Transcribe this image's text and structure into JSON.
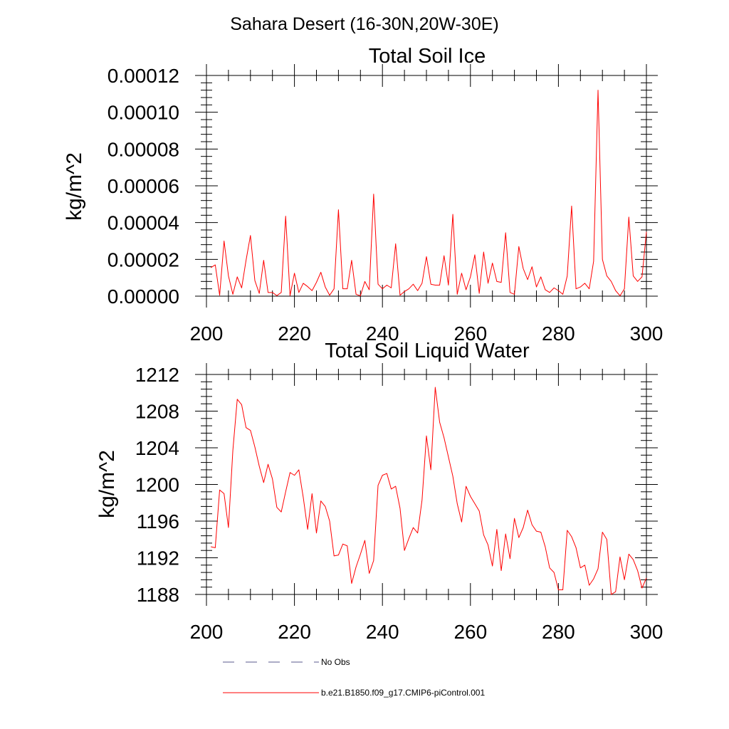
{
  "chart_data": [
    {
      "type": "line",
      "suptitle": "Sahara Desert (16-30N,20W-30E)",
      "title": "Total Soil Ice",
      "ylabel": "kg/m^2",
      "xlabel": "",
      "xlim": [
        200,
        300
      ],
      "ylim": [
        0,
        0.00012
      ],
      "xticks": [
        200,
        220,
        240,
        260,
        280,
        300
      ],
      "xtick_labels": [
        "200",
        "220",
        "240",
        "260",
        "280",
        "300"
      ],
      "yticks": [
        0,
        2e-05,
        4e-05,
        6e-05,
        8e-05,
        0.0001,
        0.00012
      ],
      "ytick_labels": [
        "0.00000",
        "0.00002",
        "0.00004",
        "0.00006",
        "0.00008",
        "0.00010",
        "0.00012"
      ],
      "series": [
        {
          "name": "b.e21.B1850.f09_g17.CMIP6-piControl.001",
          "color": "#ff0000",
          "x": [
            201,
            202,
            203,
            204,
            205,
            206,
            207,
            208,
            209,
            210,
            211,
            212,
            213,
            214,
            215,
            216,
            217,
            218,
            219,
            220,
            221,
            222,
            223,
            224,
            225,
            226,
            227,
            228,
            229,
            230,
            231,
            232,
            233,
            234,
            235,
            236,
            237,
            238,
            239,
            240,
            241,
            242,
            243,
            244,
            245,
            246,
            247,
            248,
            249,
            250,
            251,
            252,
            253,
            254,
            255,
            256,
            257,
            258,
            259,
            260,
            261,
            262,
            263,
            264,
            265,
            266,
            267,
            268,
            269,
            270,
            271,
            272,
            273,
            274,
            275,
            276,
            277,
            278,
            279,
            280,
            281,
            282,
            283,
            284,
            285,
            286,
            287,
            288,
            289,
            290,
            291,
            292,
            293,
            294,
            295,
            296,
            297,
            298,
            299,
            300
          ],
          "values": [
            1.55e-05,
            1.7e-05,
            5e-07,
            3e-05,
            1.1e-05,
            1e-06,
            1.05e-05,
            4.5e-06,
            1.95e-05,
            3.3e-05,
            8.5e-06,
            1.5e-06,
            1.95e-05,
            2e-06,
            2e-06,
            3e-07,
            2e-06,
            4.35e-05,
            3e-07,
            1.25e-05,
            2e-06,
            7e-06,
            5.2e-06,
            3e-06,
            7.5e-06,
            1.3e-05,
            5e-06,
            5e-07,
            4e-06,
            4.7e-05,
            4e-06,
            4e-06,
            1.95e-05,
            1e-06,
            2e-07,
            8e-06,
            3.5e-06,
            5.55e-05,
            6.5e-06,
            4e-06,
            6e-06,
            4.5e-06,
            2.85e-05,
            5e-07,
            2.5e-06,
            4e-06,
            6.5e-06,
            3e-06,
            7e-06,
            2.15e-05,
            6.5e-06,
            6e-06,
            6e-06,
            2.2e-05,
            6e-06,
            4.45e-05,
            1e-06,
            1.25e-05,
            3.5e-06,
            1.05e-05,
            2.25e-05,
            1.5e-06,
            2.4e-05,
            7e-06,
            1.8e-05,
            8e-06,
            7.5e-06,
            3.45e-05,
            2e-06,
            1e-06,
            2.7e-05,
            1.5e-05,
            9e-06,
            1.6e-05,
            5e-06,
            1.05e-05,
            3.5e-06,
            2e-06,
            4.5e-06,
            3e-06,
            1e-06,
            1.1e-05,
            4.9e-05,
            4e-06,
            5e-06,
            7e-06,
            4e-06,
            1.9e-05,
            0.000112,
            2e-05,
            1.1e-05,
            8e-06,
            3e-06,
            2e-07,
            4e-06,
            4.3e-05,
            1.1e-05,
            8e-06,
            1.05e-05,
            3.5e-05
          ]
        }
      ]
    },
    {
      "type": "line",
      "title": "Total Soil Liquid Water",
      "ylabel": "kg/m^2",
      "xlabel": "",
      "xlim": [
        200,
        300
      ],
      "ylim": [
        1188,
        1212
      ],
      "xticks": [
        200,
        220,
        240,
        260,
        280,
        300
      ],
      "xtick_labels": [
        "200",
        "220",
        "240",
        "260",
        "280",
        "300"
      ],
      "yticks": [
        1188,
        1192,
        1196,
        1200,
        1204,
        1208,
        1212
      ],
      "ytick_labels": [
        "1188",
        "1192",
        "1196",
        "1200",
        "1204",
        "1208",
        "1212"
      ],
      "series": [
        {
          "name": "b.e21.B1850.f09_g17.CMIP6-piControl.001",
          "color": "#ff0000",
          "x": [
            201,
            202,
            203,
            204,
            205,
            206,
            207,
            208,
            209,
            210,
            211,
            212,
            213,
            214,
            215,
            216,
            217,
            218,
            219,
            220,
            221,
            222,
            223,
            224,
            225,
            226,
            227,
            228,
            229,
            230,
            231,
            232,
            233,
            234,
            235,
            236,
            237,
            238,
            239,
            240,
            241,
            242,
            243,
            244,
            245,
            246,
            247,
            248,
            249,
            250,
            251,
            252,
            253,
            254,
            255,
            256,
            257,
            258,
            259,
            260,
            261,
            262,
            263,
            264,
            265,
            266,
            267,
            268,
            269,
            270,
            271,
            272,
            273,
            274,
            275,
            276,
            277,
            278,
            279,
            280,
            281,
            282,
            283,
            284,
            285,
            286,
            287,
            288,
            289,
            290,
            291,
            292,
            293,
            294,
            295,
            296,
            297,
            298,
            299,
            300
          ],
          "values": [
            1193.2,
            1193.1,
            1199.4,
            1199.0,
            1195.3,
            1203.7,
            1209.3,
            1208.7,
            1206.2,
            1205.9,
            1204.1,
            1202.0,
            1200.2,
            1202.2,
            1200.6,
            1197.5,
            1197.0,
            1199.2,
            1201.3,
            1201.0,
            1201.6,
            1198.6,
            1195.1,
            1199.0,
            1194.7,
            1198.2,
            1197.6,
            1196.0,
            1192.2,
            1192.3,
            1193.5,
            1193.3,
            1189.2,
            1191.0,
            1192.4,
            1193.9,
            1190.3,
            1191.7,
            1199.9,
            1201.0,
            1201.2,
            1199.5,
            1199.8,
            1197.4,
            1192.8,
            1194.1,
            1195.3,
            1194.7,
            1198.3,
            1205.3,
            1201.6,
            1210.6,
            1206.8,
            1205.1,
            1203.0,
            1200.9,
            1197.9,
            1195.9,
            1199.8,
            1198.7,
            1197.9,
            1197.1,
            1194.5,
            1193.4,
            1191.1,
            1195.1,
            1190.6,
            1194.6,
            1191.9,
            1196.3,
            1194.2,
            1195.3,
            1197.2,
            1195.6,
            1194.9,
            1194.8,
            1193.2,
            1190.9,
            1190.4,
            1188.5,
            1188.5,
            1195.0,
            1194.3,
            1193.1,
            1190.9,
            1191.2,
            1189.0,
            1189.7,
            1190.8,
            1194.8,
            1194.0,
            1188.0,
            1188.3,
            1192.1,
            1189.6,
            1192.4,
            1191.8,
            1190.6,
            1188.7,
            1189.8
          ]
        }
      ]
    }
  ],
  "legend": [
    {
      "label": "No Obs",
      "color": "#5a5a8c",
      "style": "dashed"
    },
    {
      "label": "b.e21.B1850.f09_g17.CMIP6-piControl.001",
      "color": "#ff0000",
      "style": "solid"
    }
  ]
}
